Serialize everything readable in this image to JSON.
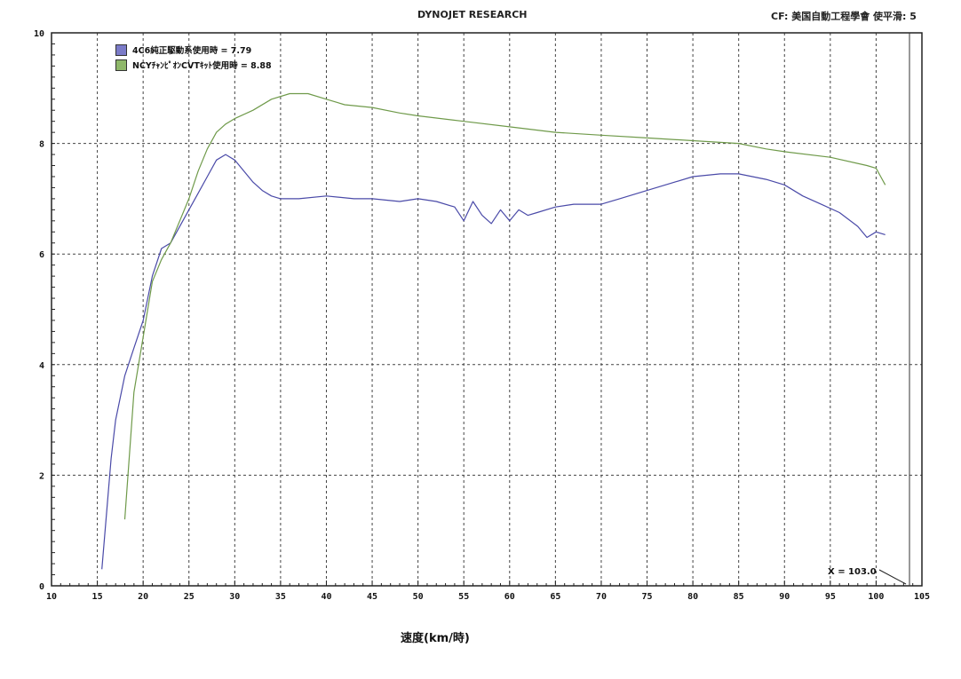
{
  "header": {
    "title": "DYNOJET RESEARCH",
    "cf_label": "CF: 美国自動工程學會 使平滑: 5"
  },
  "readout": "X = 103.0",
  "colors": {
    "series0": "#4a4aa8",
    "series1": "#6f9a4a",
    "line": "#333333",
    "grid": "#444444"
  },
  "chart_data": {
    "type": "line",
    "xlabel": "速度(km/時)",
    "ylabel": "",
    "xlim": [
      10,
      105
    ],
    "ylim": [
      0,
      10
    ],
    "xticks": [
      10,
      15,
      20,
      25,
      30,
      35,
      40,
      45,
      50,
      55,
      60,
      65,
      70,
      75,
      80,
      85,
      90,
      95,
      100,
      105
    ],
    "yticks": [
      0,
      2,
      4,
      6,
      8,
      10
    ],
    "grid": true,
    "legend_position": "top-left",
    "series": [
      {
        "name": "4C6純正駆動系使用時 = 7.79",
        "x": [
          15.5,
          16.5,
          17,
          18,
          19,
          20,
          21,
          22,
          23,
          24,
          25,
          26,
          27,
          28,
          29,
          30,
          31,
          32,
          33,
          34,
          35,
          37,
          40,
          43,
          45,
          48,
          50,
          52,
          54,
          55,
          56,
          57,
          58,
          59,
          60,
          61,
          62,
          63,
          65,
          67,
          70,
          72,
          75,
          78,
          80,
          83,
          85,
          88,
          90,
          92,
          94,
          96,
          98,
          99,
          100,
          101
        ],
        "y": [
          0.3,
          2.3,
          3.0,
          3.8,
          4.3,
          4.8,
          5.6,
          6.1,
          6.2,
          6.5,
          6.8,
          7.1,
          7.4,
          7.7,
          7.8,
          7.7,
          7.5,
          7.3,
          7.15,
          7.05,
          7.0,
          7.0,
          7.05,
          7.0,
          7.0,
          6.95,
          7.0,
          6.95,
          6.85,
          6.6,
          6.95,
          6.7,
          6.55,
          6.8,
          6.6,
          6.8,
          6.7,
          6.75,
          6.85,
          6.9,
          6.9,
          7.0,
          7.15,
          7.3,
          7.4,
          7.45,
          7.45,
          7.35,
          7.25,
          7.05,
          6.9,
          6.75,
          6.5,
          6.3,
          6.4,
          6.35
        ]
      },
      {
        "name": "NCYﾁｬﾝﾋﾟｵﾝCVTｷｯﾄ使用時 = 8.88",
        "x": [
          18,
          19,
          20,
          21,
          22,
          23,
          24,
          25,
          26,
          27,
          28,
          29,
          30,
          32,
          34,
          36,
          38,
          40,
          42,
          45,
          48,
          50,
          55,
          60,
          65,
          70,
          75,
          80,
          85,
          88,
          90,
          95,
          99,
          100,
          100.5,
          101
        ],
        "y": [
          1.2,
          3.5,
          4.5,
          5.5,
          5.9,
          6.2,
          6.6,
          7.0,
          7.5,
          7.9,
          8.2,
          8.35,
          8.45,
          8.6,
          8.8,
          8.9,
          8.9,
          8.8,
          8.7,
          8.65,
          8.55,
          8.5,
          8.4,
          8.3,
          8.2,
          8.15,
          8.1,
          8.05,
          8.0,
          7.9,
          7.85,
          7.75,
          7.6,
          7.55,
          7.4,
          7.25
        ]
      }
    ]
  }
}
